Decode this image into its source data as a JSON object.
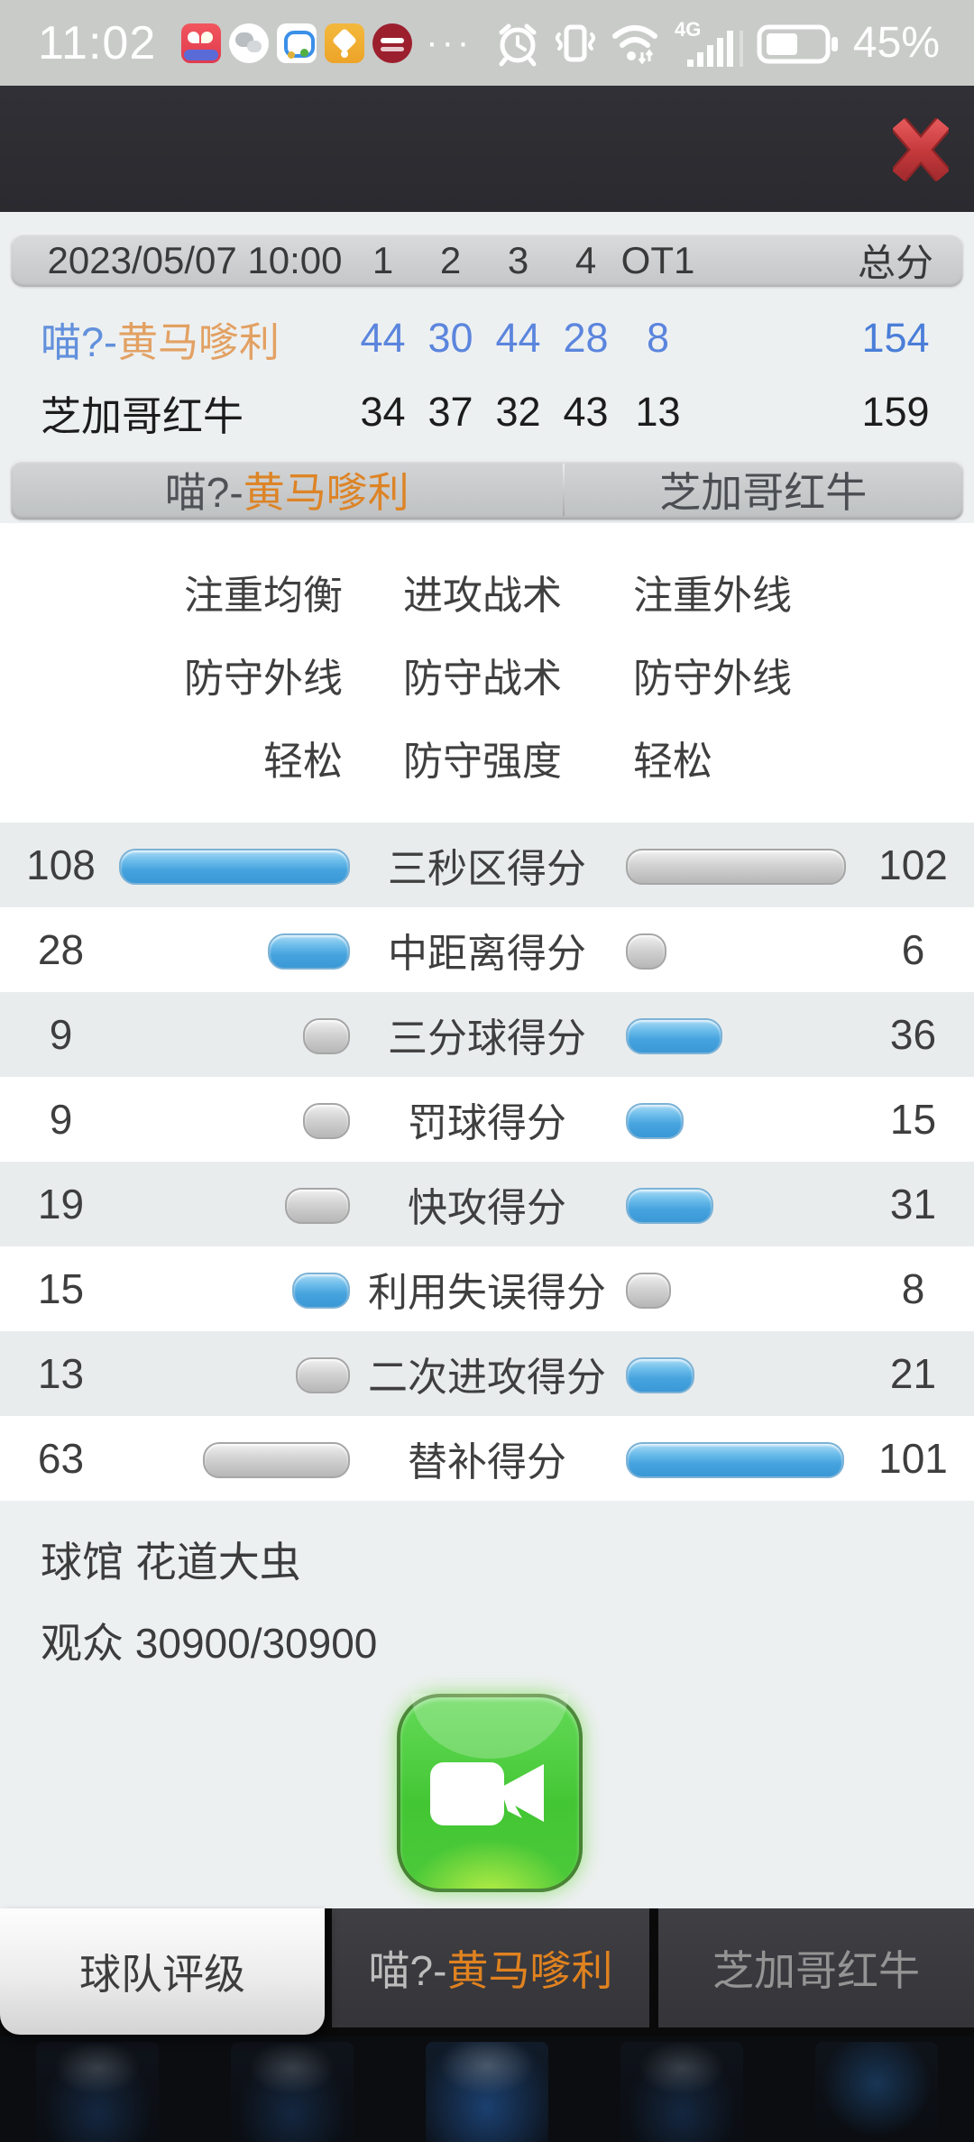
{
  "status_bar": {
    "time": "11:02",
    "more_apps": "···",
    "battery_percent": "45%",
    "network_label": "4G",
    "icons": [
      "alarm-icon",
      "vibrate-icon",
      "wifi-icon",
      "signal-bars-icon",
      "battery-icon"
    ]
  },
  "header": {
    "close_icon": "x-close"
  },
  "score_table": {
    "datetime": "2023/05/07 10:00",
    "quarter_columns": [
      "1",
      "2",
      "3",
      "4",
      "OT1"
    ],
    "total_label": "总分",
    "teams": [
      {
        "name_prefix": "喵?-",
        "name": "黄马嗲利",
        "scores": [
          "44",
          "30",
          "44",
          "28",
          "8"
        ],
        "total": "154"
      },
      {
        "name_prefix": "",
        "name": "芝加哥红牛",
        "scores": [
          "34",
          "37",
          "32",
          "43",
          "13"
        ],
        "total": "159"
      }
    ]
  },
  "team_bar": {
    "home_prefix": "喵?-",
    "home_name": "黄马嗲利",
    "away_name": "芝加哥红牛"
  },
  "tactics": [
    {
      "home": "注重均衡",
      "label": "进攻战术",
      "away": "注重外线"
    },
    {
      "home": "防守外线",
      "label": "防守战术",
      "away": "防守外线"
    },
    {
      "home": "轻松",
      "label": "防守强度",
      "away": "轻松"
    }
  ],
  "stats": [
    {
      "label": "三秒区得分",
      "home": 108,
      "away": 102
    },
    {
      "label": "中距离得分",
      "home": 28,
      "away": 6
    },
    {
      "label": "三分球得分",
      "home": 9,
      "away": 36
    },
    {
      "label": "罚球得分",
      "home": 9,
      "away": 15
    },
    {
      "label": "快攻得分",
      "home": 19,
      "away": 31
    },
    {
      "label": "利用失误得分",
      "home": 15,
      "away": 8
    },
    {
      "label": "二次进攻得分",
      "home": 13,
      "away": 21
    },
    {
      "label": "替补得分",
      "home": 63,
      "away": 101
    }
  ],
  "chart_data": {
    "type": "bar",
    "categories": [
      "三秒区得分",
      "中距离得分",
      "三分球得分",
      "罚球得分",
      "快攻得分",
      "利用失误得分",
      "二次进攻得分",
      "替补得分"
    ],
    "series": [
      {
        "name": "喵?-黄马嗲利",
        "values": [
          108,
          28,
          9,
          9,
          19,
          15,
          13,
          63
        ]
      },
      {
        "name": "芝加哥红牛",
        "values": [
          102,
          6,
          36,
          15,
          31,
          8,
          21,
          101
        ]
      }
    ],
    "note": "higher value shown as blue bar, lower as gray"
  },
  "venue": {
    "arena_label": "球馆",
    "arena_name": "花道大虫",
    "attendance_label": "观众",
    "attendance_value": "30900/30900"
  },
  "tabs": {
    "rating_label": "球队评级",
    "home_prefix": "喵?-",
    "home_name": "黄马嗲利",
    "away_name": "芝加哥红牛"
  },
  "colors": {
    "score_blue": "#5b85dd",
    "total_blue": "#4a7ed8",
    "team_orange": "#dd8426",
    "bar_blue": "#46a3de",
    "bar_gray": "#c6c6c6",
    "button_green": "#4cc93a",
    "close_red": "#c23a3c"
  }
}
